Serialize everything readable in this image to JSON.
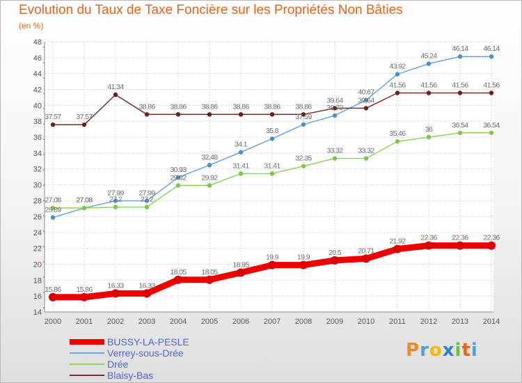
{
  "title": "Evolution du Taux de Taxe Foncière sur les Propriétés Non Bâties",
  "subtitle": "(en %)",
  "logo": {
    "letters": [
      "P",
      "r",
      "o",
      "x",
      "i",
      "t",
      "i"
    ],
    "colors": [
      "#f08a24",
      "#4aa3df",
      "#f5b800",
      "#2e7fcf",
      "#6cbf3a",
      "#e8641b",
      "#4aa3df"
    ]
  },
  "chart_data": {
    "type": "line",
    "title": "Evolution du Taux de Taxe Foncière sur les Propriétés Non Bâties",
    "xlabel": "",
    "ylabel": "(en %)",
    "x": [
      "2000",
      "2001",
      "2002",
      "2003",
      "2004",
      "2005",
      "2006",
      "2007",
      "2008",
      "2009",
      "2010",
      "2011",
      "2012",
      "2013",
      "2014"
    ],
    "ylim": [
      14,
      48
    ],
    "yticks": [
      "14",
      "16",
      "18",
      "20",
      "22",
      "24",
      "26",
      "28",
      "30",
      "32",
      "34",
      "36",
      "38",
      "40",
      "42",
      "44",
      "46",
      "48"
    ],
    "grid": true,
    "legend_position": "bottom-left",
    "series": [
      {
        "name": "BUSSY-LA-PESLE",
        "color": "#ff0000",
        "values": [
          15.86,
          15.86,
          16.33,
          16.33,
          18.05,
          18.05,
          18.95,
          19.9,
          19.9,
          20.5,
          20.71,
          21.92,
          22.36,
          22.36,
          22.36
        ],
        "labels": [
          "15.86",
          "15.86",
          "16.33",
          "16.33",
          "18.05",
          "18.05",
          "18.95",
          "19.9",
          "19.9",
          "20.5",
          "20.71",
          "21.92",
          "22.36",
          "22.36",
          "22.36"
        ]
      },
      {
        "name": "Verrey-sous-Drée",
        "color": "#6aa6d8",
        "values": [
          25.89,
          27.08,
          27.99,
          27.99,
          30.93,
          32.48,
          34.1,
          35.8,
          37.59,
          38.72,
          40.67,
          43.92,
          45.24,
          46.14,
          46.14
        ],
        "labels": [
          "25.89",
          "27.08",
          "27.99",
          "27.99",
          "30.93",
          "32.48",
          "34.1",
          "35.8",
          "37.59",
          "38.72",
          "40.67",
          "43.92",
          "45.24",
          "46.14",
          "46.14"
        ]
      },
      {
        "name": "Drée",
        "color": "#8ed65a",
        "values": [
          27.08,
          27.08,
          27.2,
          27.2,
          29.92,
          29.92,
          31.41,
          31.41,
          32.35,
          33.32,
          33.32,
          35.46,
          36,
          36.54,
          36.54
        ],
        "labels": [
          "27.08",
          "27.08",
          "27.2",
          "27.2",
          "29.92",
          "29.92",
          "31.41",
          "31.41",
          "32.35",
          "33.32",
          "33.32",
          "35.46",
          "36",
          "36.54",
          "36.54"
        ]
      },
      {
        "name": "Blaisy-Bas",
        "color": "#7a2e2e",
        "values": [
          37.57,
          37.57,
          41.34,
          38.86,
          38.86,
          38.86,
          38.86,
          38.86,
          38.86,
          39.64,
          39.64,
          41.56,
          41.56,
          41.56,
          41.56
        ],
        "labels": [
          "37.57",
          "37.57",
          "41.34",
          "38.86",
          "38.86",
          "38.86",
          "38.86",
          "38.86",
          "38.86",
          "39.64",
          "39.64",
          "41.56",
          "41.56",
          "41.56",
          "41.56"
        ]
      }
    ]
  }
}
